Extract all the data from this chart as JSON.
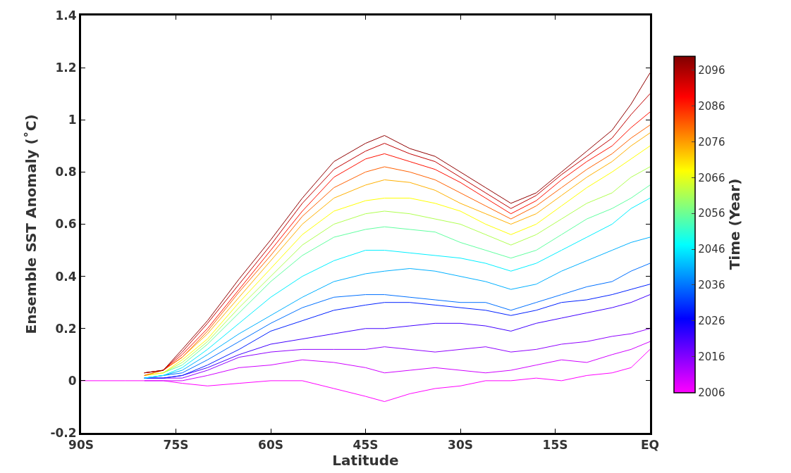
{
  "chart_data": {
    "type": "line",
    "xlabel": "Latitude",
    "ylabel": "Ensemble SST Anomaly (˚C)",
    "clabel": "Time (Year)",
    "x": [
      -90,
      -83,
      -80,
      -77,
      -74,
      -70,
      -65,
      -60,
      -55,
      -50,
      -45,
      -42,
      -38,
      -34,
      -30,
      -26,
      -22,
      -18,
      -14,
      -10,
      -6,
      -3,
      0
    ],
    "xlim": [
      -90,
      0
    ],
    "xticks": [
      {
        "value": -90,
        "label": "90S"
      },
      {
        "value": -75,
        "label": "75S"
      },
      {
        "value": -60,
        "label": "60S"
      },
      {
        "value": -45,
        "label": "45S"
      },
      {
        "value": -30,
        "label": "30S"
      },
      {
        "value": -15,
        "label": "15S"
      },
      {
        "value": 0,
        "label": "EQ"
      }
    ],
    "ylim": [
      -0.2,
      1.4
    ],
    "yticks": [
      -0.2,
      0,
      0.2,
      0.4,
      0.6,
      0.8,
      1,
      1.2,
      1.4
    ],
    "clim": [
      2006,
      2100
    ],
    "cticks": [
      2006,
      2016,
      2026,
      2036,
      2046,
      2056,
      2066,
      2076,
      2086,
      2096
    ],
    "series": [
      {
        "color": "#ff00ff",
        "values": [
          0,
          0,
          0,
          0,
          -0.01,
          -0.02,
          -0.01,
          0.0,
          0.0,
          -0.03,
          -0.06,
          -0.08,
          -0.05,
          -0.03,
          -0.02,
          0.0,
          0.0,
          0.01,
          0.0,
          0.02,
          0.03,
          0.05,
          0.12
        ]
      },
      {
        "color": "#d000ff",
        "values": [
          null,
          null,
          0,
          0,
          0,
          0.02,
          0.05,
          0.06,
          0.08,
          0.07,
          0.05,
          0.03,
          0.04,
          0.05,
          0.04,
          0.03,
          0.04,
          0.06,
          0.08,
          0.07,
          0.1,
          0.12,
          0.15
        ]
      },
      {
        "color": "#9000ff",
        "values": [
          null,
          null,
          0.01,
          0.01,
          0.01,
          0.04,
          0.09,
          0.11,
          0.12,
          0.12,
          0.12,
          0.13,
          0.12,
          0.11,
          0.12,
          0.13,
          0.11,
          0.12,
          0.14,
          0.15,
          0.17,
          0.18,
          0.2
        ]
      },
      {
        "color": "#4000ff",
        "values": [
          null,
          null,
          0.01,
          0.01,
          0.02,
          0.05,
          0.1,
          0.14,
          0.16,
          0.18,
          0.2,
          0.2,
          0.21,
          0.22,
          0.22,
          0.21,
          0.19,
          0.22,
          0.24,
          0.26,
          0.28,
          0.3,
          0.33
        ]
      },
      {
        "color": "#0020ff",
        "values": [
          null,
          null,
          0.01,
          0.01,
          0.02,
          0.06,
          0.12,
          0.19,
          0.23,
          0.27,
          0.29,
          0.3,
          0.3,
          0.29,
          0.28,
          0.27,
          0.25,
          0.27,
          0.3,
          0.31,
          0.33,
          0.35,
          0.37
        ]
      },
      {
        "color": "#0070ff",
        "values": [
          null,
          null,
          0.01,
          0.02,
          0.03,
          0.08,
          0.15,
          0.22,
          0.28,
          0.32,
          0.33,
          0.33,
          0.32,
          0.31,
          0.3,
          0.3,
          0.27,
          0.3,
          0.33,
          0.36,
          0.38,
          0.42,
          0.45
        ]
      },
      {
        "color": "#00b0ff",
        "values": [
          null,
          null,
          0.01,
          0.02,
          0.04,
          0.1,
          0.18,
          0.25,
          0.32,
          0.38,
          0.41,
          0.42,
          0.43,
          0.42,
          0.4,
          0.38,
          0.35,
          0.37,
          0.42,
          0.46,
          0.5,
          0.53,
          0.55
        ]
      },
      {
        "color": "#00f0ff",
        "values": [
          null,
          null,
          0.01,
          0.02,
          0.05,
          0.12,
          0.22,
          0.32,
          0.4,
          0.46,
          0.5,
          0.5,
          0.49,
          0.48,
          0.47,
          0.45,
          0.42,
          0.45,
          0.5,
          0.55,
          0.6,
          0.66,
          0.7
        ]
      },
      {
        "color": "#60ffa0",
        "values": [
          null,
          null,
          null,
          0.03,
          0.06,
          0.14,
          0.26,
          0.38,
          0.48,
          0.55,
          0.58,
          0.59,
          0.58,
          0.57,
          0.53,
          0.5,
          0.47,
          0.5,
          0.56,
          0.62,
          0.66,
          0.7,
          0.75
        ]
      },
      {
        "color": "#b0ff50",
        "values": [
          null,
          null,
          0.02,
          0.03,
          0.07,
          0.15,
          0.28,
          0.4,
          0.52,
          0.6,
          0.64,
          0.65,
          0.64,
          0.62,
          0.6,
          0.56,
          0.52,
          0.56,
          0.62,
          0.68,
          0.72,
          0.78,
          0.82
        ]
      },
      {
        "color": "#ffff00",
        "values": [
          null,
          null,
          0.02,
          0.03,
          0.08,
          0.16,
          0.3,
          0.43,
          0.56,
          0.65,
          0.69,
          0.7,
          0.7,
          0.68,
          0.65,
          0.6,
          0.56,
          0.6,
          0.67,
          0.74,
          0.8,
          0.85,
          0.9
        ]
      },
      {
        "color": "#ffb000",
        "values": [
          null,
          null,
          0.02,
          0.04,
          0.09,
          0.18,
          0.32,
          0.46,
          0.6,
          0.7,
          0.75,
          0.77,
          0.76,
          0.73,
          0.68,
          0.64,
          0.6,
          0.64,
          0.71,
          0.78,
          0.84,
          0.9,
          0.95
        ]
      },
      {
        "color": "#ff6000",
        "values": [
          null,
          null,
          0.02,
          0.04,
          0.09,
          0.19,
          0.34,
          0.48,
          0.63,
          0.74,
          0.8,
          0.82,
          0.8,
          0.77,
          0.72,
          0.67,
          0.62,
          0.67,
          0.74,
          0.81,
          0.87,
          0.93,
          0.98
        ]
      },
      {
        "color": "#ff1000",
        "values": [
          null,
          null,
          0.03,
          0.04,
          0.1,
          0.2,
          0.35,
          0.5,
          0.65,
          0.78,
          0.85,
          0.87,
          0.84,
          0.81,
          0.76,
          0.7,
          0.64,
          0.69,
          0.77,
          0.84,
          0.9,
          0.97,
          1.03
        ]
      },
      {
        "color": "#c00000",
        "values": [
          null,
          null,
          0.03,
          0.04,
          0.11,
          0.22,
          0.37,
          0.52,
          0.68,
          0.81,
          0.88,
          0.91,
          0.87,
          0.84,
          0.78,
          0.72,
          0.66,
          0.71,
          0.79,
          0.86,
          0.93,
          1.02,
          1.1
        ]
      },
      {
        "color": "#900000",
        "values": [
          null,
          null,
          0.03,
          0.04,
          0.12,
          0.23,
          0.39,
          0.54,
          0.7,
          0.84,
          0.91,
          0.94,
          0.89,
          0.86,
          0.8,
          0.74,
          0.68,
          0.72,
          0.8,
          0.88,
          0.96,
          1.06,
          1.18
        ]
      }
    ]
  }
}
